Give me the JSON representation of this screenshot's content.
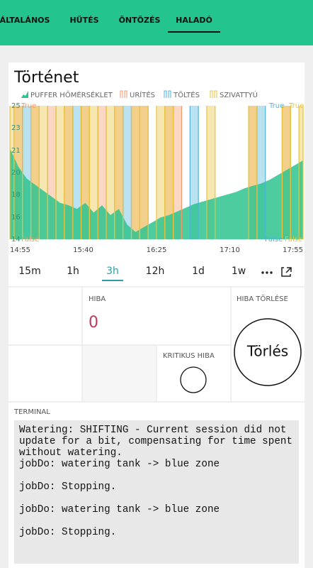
{
  "tabs": {
    "items": [
      "ÁLTALÁNOS",
      "HŰTÉS",
      "ÖNTÖZÉS",
      "HALADÓ"
    ],
    "active": 3
  },
  "chart_data": {
    "type": "area",
    "title": "Történet",
    "xticks": [
      "14:55",
      "15:40",
      "16:25",
      "17:10",
      "17:55"
    ],
    "ylim": [
      14,
      25
    ],
    "yticks": [
      25,
      {
        "value": 23.2,
        "label": "23"
      },
      {
        "value": 21.3,
        "label": "21"
      },
      {
        "value": 19.5,
        "label": "20"
      },
      {
        "value": 17.7,
        "label": "18"
      },
      {
        "value": 15.8,
        "label": "16"
      },
      14
    ],
    "bool_labels": [
      "True",
      "False"
    ],
    "series": [
      {
        "name": "PUFFER HŐMÉRSÉKLET",
        "color": "#2ec38f",
        "values": [
          21.5,
          20,
          19,
          18.5,
          18,
          17.5,
          17,
          16.8,
          16.5,
          17,
          16.2,
          16.8,
          16,
          16.5,
          15.2,
          14.6,
          15,
          15.4,
          15.8,
          16,
          16.3,
          16.6,
          16.9,
          17.1,
          17.3,
          17.5,
          17.7,
          17.9,
          18.2,
          18.4,
          18.6,
          18.9,
          19.3,
          19.7,
          20.1,
          20.5
        ]
      },
      {
        "name": "URÍTÉS",
        "color": "#f29a6a",
        "side": "left",
        "values": [
          0,
          1,
          0,
          1,
          0,
          1,
          0,
          1,
          0,
          1,
          0,
          1,
          0,
          1,
          0,
          1,
          1,
          0,
          0,
          1,
          1,
          0,
          0,
          0,
          0,
          0,
          0,
          0,
          0,
          1,
          0,
          0,
          0,
          1,
          0,
          0
        ]
      },
      {
        "name": "TÖLTÉS",
        "color": "#4fb3d9",
        "side": "right",
        "values": [
          0,
          0,
          1,
          0,
          0,
          0,
          0,
          0,
          1,
          0,
          0,
          0,
          0,
          0,
          1,
          0,
          0,
          0,
          0,
          0,
          0,
          0,
          1,
          0,
          0,
          0,
          0,
          0,
          0,
          0,
          1,
          0,
          0,
          0,
          0,
          0
        ]
      },
      {
        "name": "SZIVATTYÚ",
        "color": "#e8c23a",
        "side": "right",
        "values": [
          1,
          1,
          0,
          1,
          1,
          0,
          1,
          1,
          0,
          1,
          1,
          0,
          1,
          1,
          0,
          1,
          1,
          0,
          1,
          1,
          0,
          0,
          0,
          0,
          1,
          0,
          0,
          0,
          0,
          1,
          0,
          0,
          0,
          1,
          0,
          1
        ]
      }
    ]
  },
  "ranges": {
    "items": [
      "15m",
      "1h",
      "3h",
      "12h",
      "1d",
      "1w"
    ],
    "active": 2
  },
  "widgets": {
    "error": {
      "label": "HIBA",
      "value": "0"
    },
    "reset": {
      "label": "HIBA TÖRLÉSE",
      "button": "Törlés"
    },
    "critical": {
      "label": "KRITIKUS HIBA"
    }
  },
  "terminal": {
    "label": "TERMINAL",
    "lines": [
      "Watering: SHIFTING - Current session did not update for a bit, compensating for time spent without watering.",
      "jobDo: watering tank -> blue zone",
      "jobDo: Stopping.",
      "jobDo: watering tank -> blue zone",
      "jobDo: Stopping."
    ]
  }
}
